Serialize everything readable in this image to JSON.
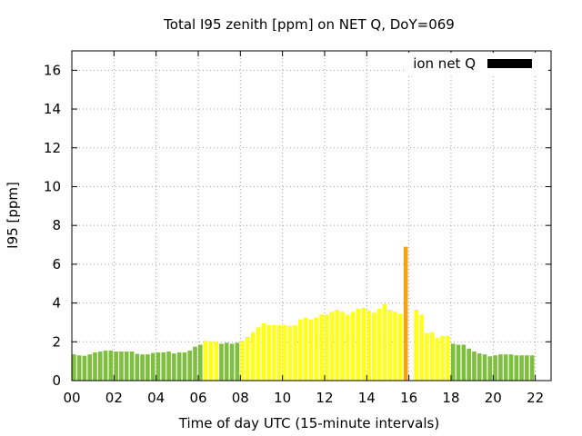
{
  "chart_data": {
    "type": "bar",
    "title": "Total I95 zenith [ppm] on NET Q, DoY=069",
    "xlabel": "Time of day UTC (15-minute intervals)",
    "ylabel": "I95 [ppm]",
    "xlim": [
      0,
      22.75
    ],
    "ylim": [
      0,
      17
    ],
    "x_tick_labels": [
      "00",
      "02",
      "04",
      "06",
      "08",
      "10",
      "12",
      "14",
      "16",
      "18",
      "20",
      "22"
    ],
    "y_tick_labels": [
      "0",
      "2",
      "4",
      "6",
      "8",
      "10",
      "12",
      "14",
      "16"
    ],
    "grid": true,
    "legend": {
      "label": "ion net Q",
      "position": "top-right",
      "color": "#000000"
    },
    "colors": {
      "green": "#7fbf3f",
      "yellow": "#ffff1a",
      "orange": "#f5a30f"
    },
    "bar_width_hours": 0.2,
    "bars": [
      {
        "t": 0.0,
        "v": 1.35,
        "c": "green"
      },
      {
        "t": 0.25,
        "v": 1.3,
        "c": "green"
      },
      {
        "t": 0.5,
        "v": 1.28,
        "c": "green"
      },
      {
        "t": 0.75,
        "v": 1.35,
        "c": "green"
      },
      {
        "t": 1.0,
        "v": 1.45,
        "c": "green"
      },
      {
        "t": 1.25,
        "v": 1.5,
        "c": "green"
      },
      {
        "t": 1.5,
        "v": 1.55,
        "c": "green"
      },
      {
        "t": 1.75,
        "v": 1.55,
        "c": "green"
      },
      {
        "t": 2.0,
        "v": 1.5,
        "c": "green"
      },
      {
        "t": 2.25,
        "v": 1.5,
        "c": "green"
      },
      {
        "t": 2.5,
        "v": 1.5,
        "c": "green"
      },
      {
        "t": 2.75,
        "v": 1.5,
        "c": "green"
      },
      {
        "t": 3.0,
        "v": 1.38,
        "c": "green"
      },
      {
        "t": 3.25,
        "v": 1.35,
        "c": "green"
      },
      {
        "t": 3.5,
        "v": 1.35,
        "c": "green"
      },
      {
        "t": 3.75,
        "v": 1.42,
        "c": "green"
      },
      {
        "t": 4.0,
        "v": 1.45,
        "c": "green"
      },
      {
        "t": 4.25,
        "v": 1.45,
        "c": "green"
      },
      {
        "t": 4.5,
        "v": 1.5,
        "c": "green"
      },
      {
        "t": 4.75,
        "v": 1.4,
        "c": "green"
      },
      {
        "t": 5.0,
        "v": 1.45,
        "c": "green"
      },
      {
        "t": 5.25,
        "v": 1.45,
        "c": "green"
      },
      {
        "t": 5.5,
        "v": 1.55,
        "c": "green"
      },
      {
        "t": 5.75,
        "v": 1.75,
        "c": "green"
      },
      {
        "t": 6.0,
        "v": 1.85,
        "c": "green"
      },
      {
        "t": 6.25,
        "v": 2.05,
        "c": "yellow"
      },
      {
        "t": 6.5,
        "v": 2.0,
        "c": "yellow"
      },
      {
        "t": 6.75,
        "v": 2.0,
        "c": "yellow"
      },
      {
        "t": 7.0,
        "v": 1.9,
        "c": "green"
      },
      {
        "t": 7.25,
        "v": 1.95,
        "c": "green"
      },
      {
        "t": 7.5,
        "v": 1.9,
        "c": "green"
      },
      {
        "t": 7.75,
        "v": 1.95,
        "c": "green"
      },
      {
        "t": 8.0,
        "v": 2.05,
        "c": "yellow"
      },
      {
        "t": 8.25,
        "v": 2.25,
        "c": "yellow"
      },
      {
        "t": 8.5,
        "v": 2.5,
        "c": "yellow"
      },
      {
        "t": 8.75,
        "v": 2.75,
        "c": "yellow"
      },
      {
        "t": 9.0,
        "v": 2.95,
        "c": "yellow"
      },
      {
        "t": 9.25,
        "v": 2.85,
        "c": "yellow"
      },
      {
        "t": 9.5,
        "v": 2.85,
        "c": "yellow"
      },
      {
        "t": 9.75,
        "v": 2.85,
        "c": "yellow"
      },
      {
        "t": 10.0,
        "v": 2.85,
        "c": "yellow"
      },
      {
        "t": 10.25,
        "v": 2.8,
        "c": "yellow"
      },
      {
        "t": 10.5,
        "v": 2.85,
        "c": "yellow"
      },
      {
        "t": 10.75,
        "v": 3.15,
        "c": "yellow"
      },
      {
        "t": 11.0,
        "v": 3.25,
        "c": "yellow"
      },
      {
        "t": 11.25,
        "v": 3.15,
        "c": "yellow"
      },
      {
        "t": 11.5,
        "v": 3.25,
        "c": "yellow"
      },
      {
        "t": 11.75,
        "v": 3.4,
        "c": "yellow"
      },
      {
        "t": 12.0,
        "v": 3.4,
        "c": "yellow"
      },
      {
        "t": 12.25,
        "v": 3.55,
        "c": "yellow"
      },
      {
        "t": 12.5,
        "v": 3.65,
        "c": "yellow"
      },
      {
        "t": 12.75,
        "v": 3.55,
        "c": "yellow"
      },
      {
        "t": 13.0,
        "v": 3.4,
        "c": "yellow"
      },
      {
        "t": 13.25,
        "v": 3.55,
        "c": "yellow"
      },
      {
        "t": 13.5,
        "v": 3.7,
        "c": "yellow"
      },
      {
        "t": 13.75,
        "v": 3.75,
        "c": "yellow"
      },
      {
        "t": 14.0,
        "v": 3.6,
        "c": "yellow"
      },
      {
        "t": 14.25,
        "v": 3.5,
        "c": "yellow"
      },
      {
        "t": 14.5,
        "v": 3.7,
        "c": "yellow"
      },
      {
        "t": 14.75,
        "v": 3.95,
        "c": "yellow"
      },
      {
        "t": 15.0,
        "v": 3.65,
        "c": "yellow"
      },
      {
        "t": 15.25,
        "v": 3.55,
        "c": "yellow"
      },
      {
        "t": 15.5,
        "v": 3.45,
        "c": "yellow"
      },
      {
        "t": 15.75,
        "v": 6.9,
        "c": "orange"
      },
      {
        "t": 16.25,
        "v": 3.65,
        "c": "yellow"
      },
      {
        "t": 16.5,
        "v": 3.4,
        "c": "yellow"
      },
      {
        "t": 16.75,
        "v": 2.45,
        "c": "yellow"
      },
      {
        "t": 17.0,
        "v": 2.5,
        "c": "yellow"
      },
      {
        "t": 17.25,
        "v": 2.2,
        "c": "yellow"
      },
      {
        "t": 17.5,
        "v": 2.3,
        "c": "yellow"
      },
      {
        "t": 17.75,
        "v": 2.3,
        "c": "yellow"
      },
      {
        "t": 18.0,
        "v": 1.9,
        "c": "green"
      },
      {
        "t": 18.25,
        "v": 1.85,
        "c": "green"
      },
      {
        "t": 18.5,
        "v": 1.85,
        "c": "green"
      },
      {
        "t": 18.75,
        "v": 1.65,
        "c": "green"
      },
      {
        "t": 19.0,
        "v": 1.5,
        "c": "green"
      },
      {
        "t": 19.25,
        "v": 1.4,
        "c": "green"
      },
      {
        "t": 19.5,
        "v": 1.35,
        "c": "green"
      },
      {
        "t": 19.75,
        "v": 1.25,
        "c": "green"
      },
      {
        "t": 20.0,
        "v": 1.3,
        "c": "green"
      },
      {
        "t": 20.25,
        "v": 1.35,
        "c": "green"
      },
      {
        "t": 20.5,
        "v": 1.35,
        "c": "green"
      },
      {
        "t": 20.75,
        "v": 1.35,
        "c": "green"
      },
      {
        "t": 21.0,
        "v": 1.3,
        "c": "green"
      },
      {
        "t": 21.25,
        "v": 1.3,
        "c": "green"
      },
      {
        "t": 21.5,
        "v": 1.3,
        "c": "green"
      },
      {
        "t": 21.75,
        "v": 1.3,
        "c": "green"
      }
    ]
  }
}
